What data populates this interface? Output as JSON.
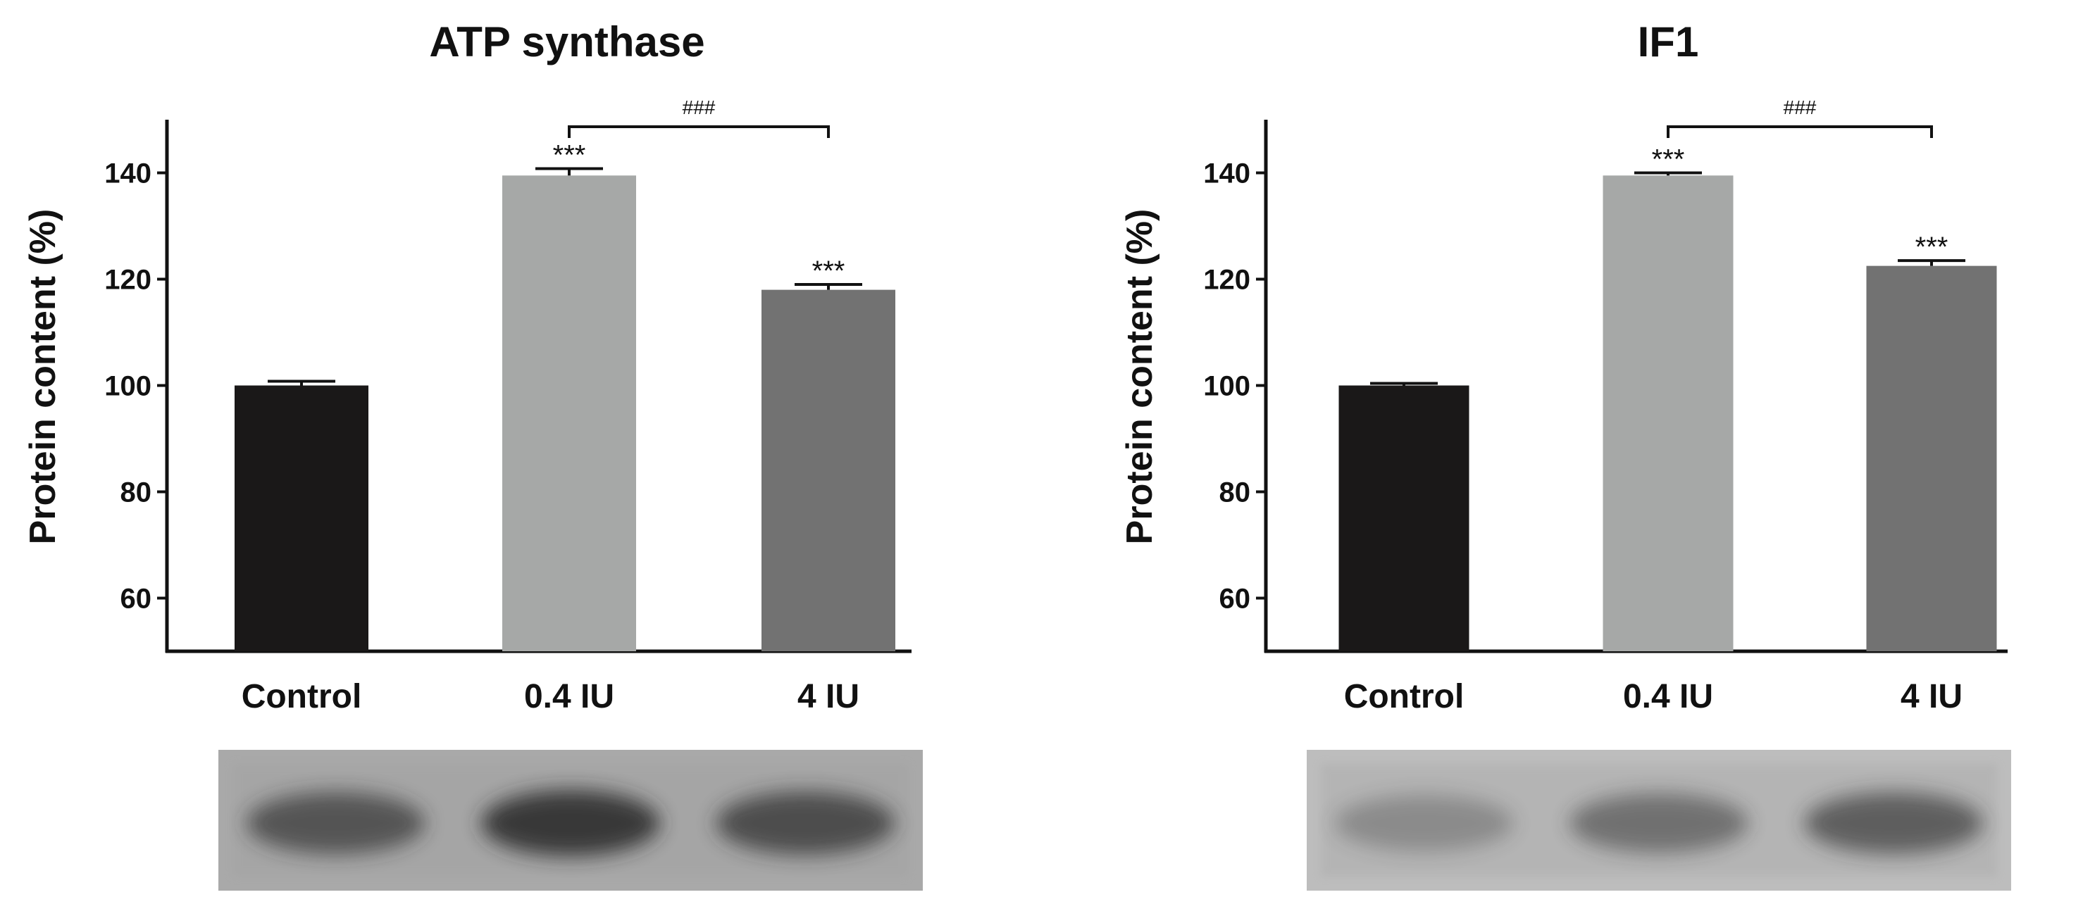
{
  "chart_data": [
    {
      "type": "bar",
      "title": "ATP synthase",
      "ylabel": "Protein content (%)",
      "xlabel": "",
      "categories": [
        "Control",
        "0.4 IU",
        "4 IU"
      ],
      "values": [
        100,
        139.5,
        118
      ],
      "errors": [
        0.8,
        1.3,
        1.0
      ],
      "bar_colors": [
        "#1a1818",
        "#a6a8a7",
        "#727272"
      ],
      "significance": [
        "",
        "***",
        "***"
      ],
      "bracket": {
        "from": 1,
        "to": 2,
        "label": "###"
      },
      "ylim": [
        50,
        150
      ],
      "yticks": [
        60,
        80,
        100,
        120,
        140
      ],
      "grid": false,
      "blot": {
        "bands": [
          1.0,
          1.35,
          1.1
        ]
      }
    },
    {
      "type": "bar",
      "title": "IF1",
      "ylabel": "Protein content (%)",
      "xlabel": "",
      "categories": [
        "Control",
        "0.4 IU",
        "4 IU"
      ],
      "values": [
        100,
        139.5,
        122.5
      ],
      "errors": [
        0.4,
        0.5,
        1.0
      ],
      "bar_colors": [
        "#1a1818",
        "#a6a8a7",
        "#727272"
      ],
      "significance": [
        "",
        "***",
        "***"
      ],
      "bracket": {
        "from": 1,
        "to": 2,
        "label": "###"
      },
      "ylim": [
        50,
        150
      ],
      "yticks": [
        60,
        80,
        100,
        120,
        140
      ],
      "grid": false,
      "blot": {
        "bands": [
          0.45,
          0.75,
          0.95
        ]
      }
    }
  ]
}
